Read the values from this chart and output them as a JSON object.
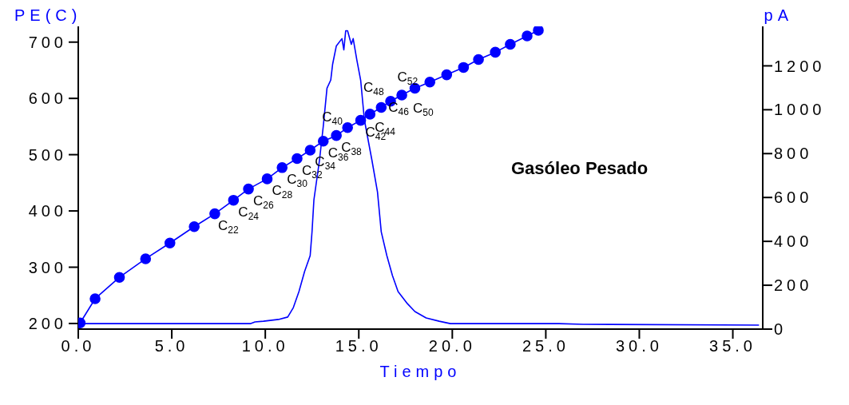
{
  "chart_data": {
    "type": "line",
    "xlabel": "Tiempo",
    "ylabel": "PE(C)",
    "y2label": "pA",
    "xlim": [
      0,
      36.6
    ],
    "xticks": [
      {
        "value": 0,
        "label": "0.0"
      },
      {
        "value": 5,
        "label": "5.0"
      },
      {
        "value": 10,
        "label": "10.0"
      },
      {
        "value": 15,
        "label": "15.0"
      },
      {
        "value": 20,
        "label": "20.0"
      },
      {
        "value": 25,
        "label": "25.0"
      },
      {
        "value": 30,
        "label": "30.0"
      },
      {
        "value": 35,
        "label": "35.0"
      }
    ],
    "ylim": [
      190,
      728
    ],
    "yticks": [
      200,
      300,
      400,
      500,
      600,
      700
    ],
    "y2lim": [
      0,
      1380
    ],
    "y2ticks": [
      0,
      200,
      400,
      600,
      800,
      1000,
      1200
    ],
    "grid": false,
    "legend": false,
    "series": [
      {
        "color": "#0000ff",
        "marker": "circle",
        "x": [
          0.1,
          0.9,
          2.2,
          3.6,
          4.9,
          6.2,
          7.3,
          8.3,
          9.1,
          10.1,
          10.9,
          11.7,
          12.4,
          13.1,
          13.8,
          14.4,
          15.1,
          15.6,
          16.2,
          16.7,
          17.3,
          18.0,
          18.8,
          19.7,
          20.6,
          21.4,
          22.3,
          23.1,
          24.0,
          24.6
        ],
        "values": [
          201,
          244,
          282,
          315,
          343,
          372,
          395,
          419,
          439,
          457,
          477,
          493,
          508,
          524,
          534,
          548,
          561,
          572,
          584,
          595,
          606,
          618,
          629,
          642,
          655,
          669,
          682,
          696,
          711,
          721
        ]
      },
      {
        "color": "#0000ff",
        "marker": "none",
        "axis": "y2",
        "x": [
          0,
          9.2,
          9.45,
          9.9,
          10.7,
          11.2,
          11.5,
          11.8,
          12.1,
          12.4,
          12.5,
          12.6,
          12.9,
          13.1,
          13.3,
          13.5,
          13.6,
          13.8,
          14.1,
          14.2,
          14.3,
          14.4,
          14.6,
          14.7,
          14.9,
          15.1,
          15.3,
          15.7,
          16.0,
          16.2,
          16.5,
          16.8,
          17.1,
          17.6,
          18.0,
          18.6,
          19.3,
          19.9,
          25.7,
          27.0,
          36.4
        ],
        "values": [
          25,
          25,
          33,
          36,
          44,
          55,
          98,
          171,
          262,
          335,
          444,
          589,
          771,
          924,
          1098,
          1135,
          1207,
          1291,
          1324,
          1273,
          1360,
          1360,
          1298,
          1324,
          1225,
          1135,
          953,
          771,
          625,
          444,
          335,
          244,
          171,
          116,
          80,
          51,
          36,
          25,
          25,
          22,
          18
        ]
      }
    ],
    "annotations": [
      "Gasóleo Pesado",
      {
        "text": "C$_{22}$",
        "x": 7.3,
        "y": 395
      },
      {
        "text": "C$_{24}$",
        "x": 8.3,
        "y": 419
      },
      {
        "text": "C$_{26}$",
        "x": 9.1,
        "y": 439
      },
      {
        "text": "C$_{28}$",
        "x": 10.1,
        "y": 457
      },
      {
        "text": "C$_{30}$",
        "x": 10.9,
        "y": 477
      },
      {
        "text": "C$_{32}$",
        "x": 11.7,
        "y": 493
      },
      {
        "text": "C$_{34}$",
        "x": 12.4,
        "y": 508
      },
      {
        "text": "C$_{36}$",
        "x": 13.1,
        "y": 524
      },
      {
        "text": "C$_{38}$",
        "x": 13.8,
        "y": 534
      },
      {
        "text": "C$_{40}$",
        "x": 14.4,
        "y": 548
      },
      {
        "text": "C$_{42}$",
        "x": 15.1,
        "y": 561
      },
      {
        "text": "C$_{44}$",
        "x": 15.6,
        "y": 572
      },
      {
        "text": "C$_{46}$",
        "x": 16.2,
        "y": 584
      },
      {
        "text": "C$_{48}$",
        "x": 16.7,
        "y": 595
      },
      {
        "text": "C$_{50}$",
        "x": 17.3,
        "y": 606
      },
      {
        "text": "C$_{52}$",
        "x": 18.0,
        "y": 618
      }
    ]
  }
}
